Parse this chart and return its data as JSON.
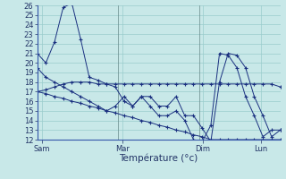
{
  "background_color": "#c8e8e8",
  "line_color": "#1a3080",
  "grid_color": "#99cccc",
  "ylim": [
    12,
    26
  ],
  "yticks": [
    12,
    13,
    14,
    15,
    16,
    17,
    18,
    19,
    20,
    21,
    22,
    23,
    24,
    25,
    26
  ],
  "xlabel": "Température (°c)",
  "xlabel_fontsize": 7.5,
  "tick_fontsize": 6,
  "day_labels": [
    "Sam",
    "Mar",
    "Dim",
    "Lun"
  ],
  "series": [
    [
      21.0,
      20.0,
      22.2,
      25.8,
      26.2,
      22.5,
      18.5,
      18.2,
      17.8,
      17.5,
      16.0,
      15.5,
      16.5,
      16.5,
      15.5,
      15.5,
      16.5,
      14.5,
      14.5,
      13.2,
      11.8,
      18.0,
      21.0,
      20.8,
      19.5,
      16.5,
      14.5,
      12.3,
      13.0
    ],
    [
      17.0,
      17.2,
      17.5,
      17.8,
      18.0,
      18.0,
      18.0,
      17.8,
      17.8,
      17.8,
      17.8,
      17.8,
      17.8,
      17.8,
      17.8,
      17.8,
      17.8,
      17.8,
      17.8,
      17.8,
      17.8,
      17.8,
      17.8,
      17.8,
      17.8,
      17.8,
      17.8,
      17.8,
      17.5
    ],
    [
      17.0,
      16.8,
      16.5,
      16.3,
      16.0,
      15.8,
      15.5,
      15.3,
      15.0,
      14.8,
      14.5,
      14.3,
      14.0,
      13.8,
      13.5,
      13.3,
      13.0,
      12.8,
      12.5,
      12.3,
      12.0,
      12.0,
      12.0,
      12.0,
      12.0,
      12.0,
      12.0,
      12.0,
      12.0
    ],
    [
      19.5,
      18.5,
      18.0,
      17.5,
      17.0,
      16.5,
      16.0,
      15.5,
      15.0,
      15.5,
      16.5,
      15.5,
      16.5,
      15.5,
      14.5,
      14.5,
      15.0,
      14.0,
      12.0,
      11.8,
      13.5,
      21.0,
      20.8,
      19.5,
      16.5,
      14.5,
      12.3,
      13.0,
      13.0
    ]
  ]
}
